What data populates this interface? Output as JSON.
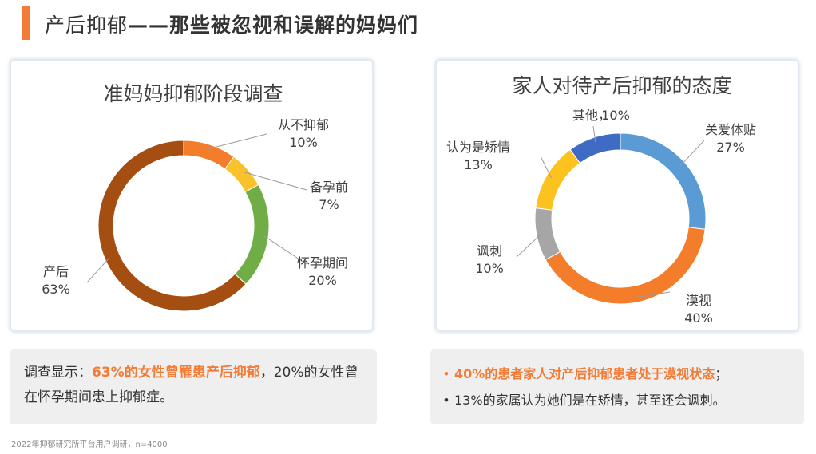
{
  "slide": {
    "title_part1": "产后抑郁",
    "title_dash": "——",
    "title_part2": "那些被忽视和误解的妈妈们"
  },
  "chart_data": [
    {
      "type": "pie",
      "variant": "donut",
      "title": "准妈妈抑郁阶段调查",
      "categories": [
        "从不抑郁",
        "备孕前",
        "怀孕期间",
        "产后"
      ],
      "values": [
        10,
        7,
        20,
        63
      ],
      "labels": [
        "10%",
        "7%",
        "20%",
        "63%"
      ],
      "colors": [
        "#f37d2b",
        "#f9c12a",
        "#70ad47",
        "#a54e11"
      ],
      "label_side": [
        "right",
        "right",
        "right",
        "left"
      ],
      "start": "top",
      "direction": "clockwise",
      "legend": "none"
    },
    {
      "type": "pie",
      "variant": "donut",
      "title": "家人对待产后抑郁的态度",
      "categories": [
        "关爱体贴",
        "漠视",
        "讽刺",
        "认为是矫情",
        "其他，"
      ],
      "values": [
        27,
        40,
        10,
        13,
        10
      ],
      "labels": [
        "27%",
        "40%",
        "10%",
        "13%",
        "10%"
      ],
      "colors": [
        "#5b9bd5",
        "#f37d2b",
        "#a6a6a6",
        "#fcc21f",
        "#3f6bc4"
      ],
      "label_side": [
        "right",
        "right",
        "left",
        "left",
        "top"
      ],
      "start": "top",
      "direction": "clockwise",
      "legend": "none"
    }
  ],
  "summary_left": {
    "prefix": "调查显示：",
    "highlight": "63%的女性曾罹患产后抑郁",
    "rest": "，20%的女性曾在怀孕期间患上抑郁症。"
  },
  "summary_right": {
    "bullet": "•",
    "item1_highlight": "40%的患者家人对产后抑郁患者处于漠视状态",
    "item1_end": "；",
    "item2": "13%的家属认为她们是在矫情，甚至还会讽刺。"
  },
  "source_note": "2022年抑郁研究所平台用户调研，n=4000"
}
